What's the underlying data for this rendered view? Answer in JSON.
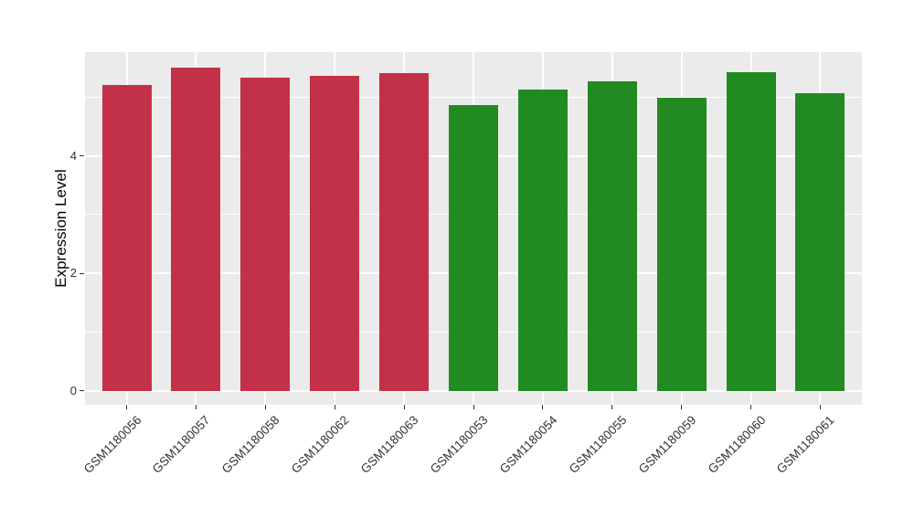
{
  "chart_data": {
    "type": "bar",
    "title": "",
    "xlabel": "",
    "ylabel": "Expression Level",
    "categories": [
      "GSM1180056",
      "GSM1180057",
      "GSM1180058",
      "GSM1180062",
      "GSM1180063",
      "GSM1180053",
      "GSM1180054",
      "GSM1180055",
      "GSM1180059",
      "GSM1180060",
      "GSM1180061"
    ],
    "series": [
      {
        "name": "Expression Level",
        "values": [
          5.21,
          5.5,
          5.34,
          5.36,
          5.41,
          4.87,
          5.13,
          5.27,
          4.99,
          5.43,
          5.07
        ]
      }
    ],
    "bar_groups": [
      "red",
      "red",
      "red",
      "red",
      "red",
      "green",
      "green",
      "green",
      "green",
      "green",
      "green"
    ],
    "group_colors": {
      "red": "#C33149",
      "green": "#218A21"
    },
    "ytick_values": [
      0,
      2,
      4
    ],
    "ytick_labels": [
      "0",
      "2",
      "4"
    ],
    "minor_ytick_values": [
      1,
      3,
      5
    ],
    "ylim": [
      -0.24,
      5.77
    ],
    "grid": "on",
    "legend": "none",
    "x_labels_rotation_deg": 45,
    "colors": {
      "plot_background": "#EBEBEB",
      "gridline": "#FFFFFF",
      "axis_text": "#333333",
      "tick_mark": "#333333",
      "axis_title": "#000000",
      "figure_background": "#FFFFFF"
    }
  }
}
